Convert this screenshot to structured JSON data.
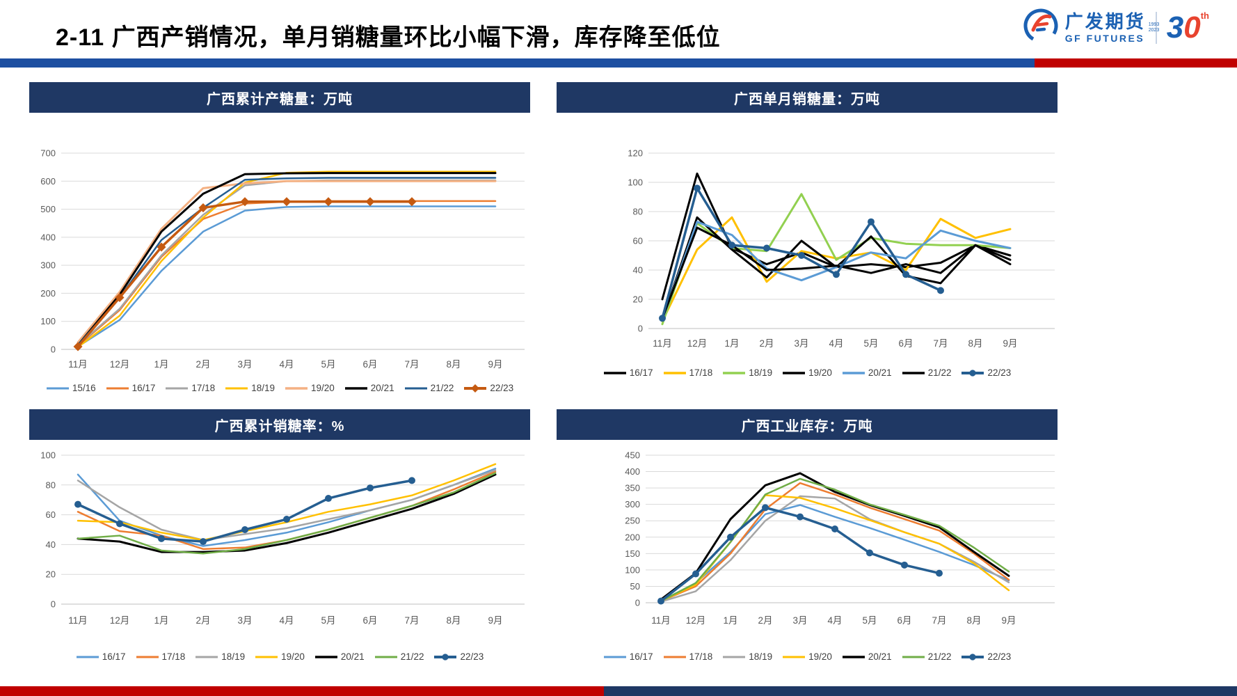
{
  "page": {
    "title": "2-11 广西产销情况，单月销糖量环比小幅下滑，库存降至低位",
    "logo": {
      "cn": "广发期货",
      "en": "GF FUTURES",
      "anniversary_number_3": "3",
      "anniversary_number_0": "0",
      "anniversary_suffix": "th",
      "anniversary_year_from": "1993",
      "anniversary_year_to": "2023"
    },
    "colors": {
      "band_navy": "#1F3864",
      "bar_blue": "#1D4FA1",
      "bar_red": "#C00000",
      "logo_blue": "#1B61B3",
      "logo_red": "#E8432E",
      "gridline": "#D9D9D9",
      "axis_text": "#595959"
    }
  },
  "months": [
    "11月",
    "12月",
    "1月",
    "2月",
    "3月",
    "4月",
    "5月",
    "6月",
    "7月",
    "8月",
    "9月"
  ],
  "chart_data": [
    {
      "type": "line",
      "title": "广西累计产糖量：万吨",
      "ylim": [
        0,
        700
      ],
      "yticks": [
        0,
        100,
        200,
        300,
        400,
        500,
        600,
        700
      ],
      "grid": true,
      "legend_position": "bottom",
      "series": [
        {
          "name": "15/16",
          "color": "#5B9BD5",
          "width": 2.5,
          "marker": null,
          "values": [
            10,
            105,
            280,
            420,
            495,
            508,
            510,
            510,
            510,
            510,
            510
          ]
        },
        {
          "name": "16/17",
          "color": "#ED7D31",
          "width": 2.5,
          "marker": null,
          "values": [
            12,
            140,
            330,
            465,
            520,
            527,
            529,
            529,
            529,
            529,
            529
          ]
        },
        {
          "name": "17/18",
          "color": "#A5A5A5",
          "width": 2.5,
          "marker": null,
          "values": [
            15,
            145,
            335,
            480,
            585,
            600,
            603,
            603,
            603,
            603,
            603
          ]
        },
        {
          "name": "18/19",
          "color": "#FFC000",
          "width": 2.5,
          "marker": null,
          "values": [
            8,
            120,
            315,
            470,
            595,
            630,
            634,
            634,
            634,
            634,
            634
          ]
        },
        {
          "name": "19/20",
          "color": "#F4B183",
          "width": 3,
          "marker": null,
          "values": [
            25,
            205,
            430,
            575,
            592,
            600,
            600,
            600,
            600,
            600,
            600
          ]
        },
        {
          "name": "20/21",
          "color": "#000000",
          "width": 3,
          "marker": null,
          "values": [
            15,
            195,
            420,
            555,
            625,
            628,
            629,
            629,
            629,
            629,
            629
          ]
        },
        {
          "name": "21/22",
          "color": "#255E91",
          "width": 2.5,
          "marker": null,
          "values": [
            15,
            185,
            390,
            505,
            605,
            610,
            612,
            612,
            612,
            612,
            612
          ]
        },
        {
          "name": "22/23",
          "color": "#C55A11",
          "width": 3.5,
          "marker": "diamond",
          "values": [
            10,
            185,
            365,
            505,
            527,
            527,
            527,
            527,
            527,
            null,
            null
          ]
        }
      ]
    },
    {
      "type": "line",
      "title": "广西单月销糖量：万吨",
      "ylim": [
        0,
        120
      ],
      "yticks": [
        0,
        20,
        40,
        60,
        80,
        100,
        120
      ],
      "grid": true,
      "legend_position": "bottom",
      "series": [
        {
          "name": "16/17",
          "color": "#000000",
          "width": 3,
          "marker": null,
          "values": [
            20,
            106,
            55,
            44,
            52,
            42,
            44,
            42,
            45,
            57,
            50
          ]
        },
        {
          "name": "17/18",
          "color": "#FFC000",
          "width": 3,
          "marker": null,
          "values": [
            5,
            54,
            76,
            32,
            53,
            48,
            52,
            40,
            75,
            62,
            68
          ]
        },
        {
          "name": "18/19",
          "color": "#92D050",
          "width": 3,
          "marker": null,
          "values": [
            3,
            72,
            55,
            53,
            92,
            47,
            62,
            58,
            57,
            57,
            55
          ]
        },
        {
          "name": "19/20",
          "color": "#000000",
          "width": 3,
          "marker": null,
          "values": [
            6,
            76,
            54,
            35,
            60,
            42,
            63,
            36,
            31,
            57,
            47
          ]
        },
        {
          "name": "20/21",
          "color": "#5B9BD5",
          "width": 3,
          "marker": null,
          "values": [
            6,
            73,
            64,
            41,
            33,
            42,
            52,
            48,
            67,
            60,
            55
          ]
        },
        {
          "name": "21/22",
          "color": "#000000",
          "width": 3,
          "marker": null,
          "values": [
            7,
            69,
            57,
            40,
            41,
            43,
            38,
            44,
            38,
            57,
            44
          ]
        },
        {
          "name": "22/23",
          "color": "#255E91",
          "width": 3.5,
          "marker": "circle",
          "values": [
            7,
            96,
            57,
            55,
            50,
            37,
            73,
            37,
            26,
            null,
            null
          ]
        }
      ]
    },
    {
      "type": "line",
      "title": "广西累计销糖率：%",
      "ylim": [
        0,
        100
      ],
      "yticks": [
        0,
        20,
        40,
        60,
        80,
        100
      ],
      "grid": true,
      "legend_position": "bottom",
      "series": [
        {
          "name": "16/17",
          "color": "#5B9BD5",
          "width": 2.5,
          "marker": null,
          "values": [
            87,
            56,
            46,
            39,
            43,
            48,
            55,
            63,
            70,
            80,
            91
          ]
        },
        {
          "name": "17/18",
          "color": "#ED7D31",
          "width": 2.5,
          "marker": null,
          "values": [
            62,
            49,
            46,
            37,
            38,
            43,
            50,
            58,
            66,
            77,
            89
          ]
        },
        {
          "name": "18/19",
          "color": "#A5A5A5",
          "width": 2.5,
          "marker": null,
          "values": [
            83,
            65,
            50,
            43,
            47,
            51,
            57,
            63,
            70,
            80,
            90
          ]
        },
        {
          "name": "19/20",
          "color": "#FFC000",
          "width": 2.5,
          "marker": null,
          "values": [
            56,
            55,
            48,
            43,
            49,
            55,
            62,
            67,
            73,
            83,
            94
          ]
        },
        {
          "name": "20/21",
          "color": "#000000",
          "width": 3,
          "marker": null,
          "values": [
            44,
            42,
            35,
            35,
            36,
            41,
            48,
            56,
            64,
            74,
            87
          ]
        },
        {
          "name": "21/22",
          "color": "#70AD47",
          "width": 2.5,
          "marker": null,
          "values": [
            44,
            46,
            36,
            34,
            37,
            43,
            50,
            58,
            66,
            75,
            88
          ]
        },
        {
          "name": "22/23",
          "color": "#255E91",
          "width": 3.5,
          "marker": "circle",
          "values": [
            67,
            54,
            44,
            42,
            50,
            57,
            71,
            78,
            83,
            null,
            null
          ]
        }
      ]
    },
    {
      "type": "line",
      "title": "广西工业库存：万吨",
      "ylim": [
        0,
        450
      ],
      "yticks": [
        0,
        50,
        100,
        150,
        200,
        250,
        300,
        350,
        400,
        450
      ],
      "grid": true,
      "legend_position": "bottom",
      "series": [
        {
          "name": "16/17",
          "color": "#5B9BD5",
          "width": 2.5,
          "marker": null,
          "values": [
            5,
            60,
            155,
            270,
            298,
            262,
            228,
            192,
            155,
            115,
            68
          ]
        },
        {
          "name": "17/18",
          "color": "#ED7D31",
          "width": 2.5,
          "marker": null,
          "values": [
            5,
            50,
            150,
            285,
            365,
            330,
            290,
            255,
            220,
            150,
            70
          ]
        },
        {
          "name": "18/19",
          "color": "#A5A5A5",
          "width": 2.5,
          "marker": null,
          "values": [
            3,
            35,
            130,
            250,
            325,
            318,
            255,
            215,
            180,
            125,
            62
          ]
        },
        {
          "name": "19/20",
          "color": "#FFC000",
          "width": 2.5,
          "marker": null,
          "values": [
            5,
            55,
            185,
            328,
            320,
            288,
            252,
            215,
            180,
            120,
            38
          ]
        },
        {
          "name": "20/21",
          "color": "#000000",
          "width": 3,
          "marker": null,
          "values": [
            10,
            90,
            255,
            358,
            395,
            338,
            298,
            265,
            230,
            155,
            82
          ]
        },
        {
          "name": "21/22",
          "color": "#70AD47",
          "width": 2.5,
          "marker": null,
          "values": [
            5,
            60,
            185,
            330,
            378,
            345,
            300,
            268,
            235,
            168,
            95
          ]
        },
        {
          "name": "22/23",
          "color": "#255E91",
          "width": 3.5,
          "marker": "circle",
          "values": [
            5,
            88,
            200,
            290,
            262,
            225,
            152,
            115,
            90,
            null,
            null
          ]
        }
      ]
    }
  ]
}
